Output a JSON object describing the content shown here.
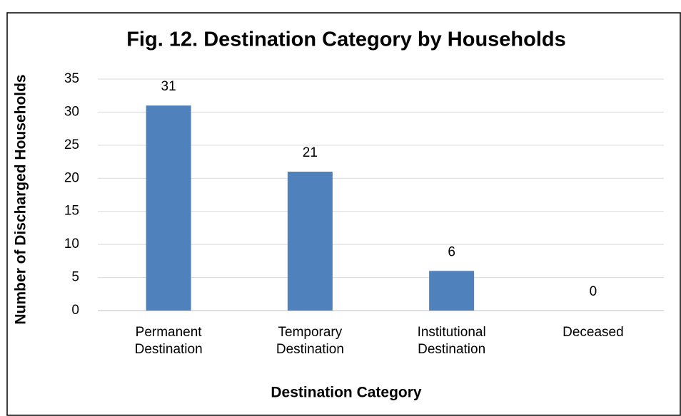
{
  "chart_data": {
    "type": "bar",
    "title": "Fig. 12. Destination Category by Households",
    "categories": [
      "Permanent Destination",
      "Temporary Destination",
      "Institutional Destination",
      "Deceased"
    ],
    "values": [
      31,
      21,
      6,
      0
    ],
    "color": "#4f81bd",
    "ylim": [
      0,
      35
    ],
    "yticks": [
      0,
      5,
      10,
      15,
      20,
      25,
      30,
      35
    ],
    "grid": true,
    "xlabel": "Destination Category",
    "ylabel": "Number of Discharged Households"
  }
}
